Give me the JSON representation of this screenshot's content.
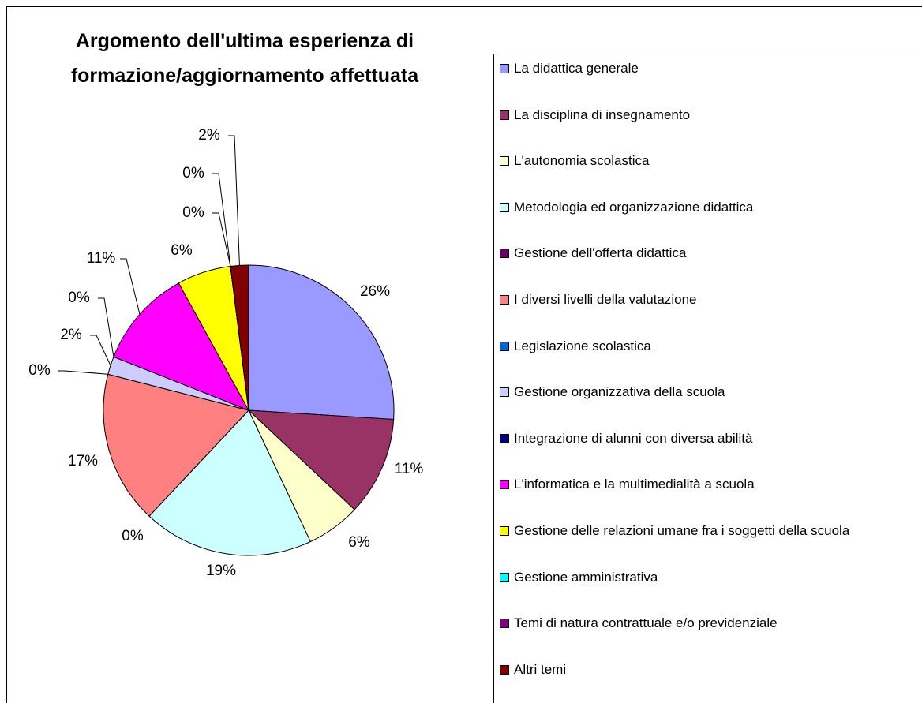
{
  "chart_data": {
    "type": "pie",
    "title": "Argomento dell'ultima esperienza di formazione/aggiornamento affettuata",
    "categories": [
      "La didattica generale",
      "La disciplina di insegnamento",
      "L'autonomia scolastica",
      "Metodologia ed organizzazione didattica",
      "Gestione dell'offerta didattica",
      "I diversi livelli della valutazione",
      "Legislazione scolastica",
      "Gestione organizzativa della scuola",
      "Integrazione di alunni con diversa abilità",
      "L'informatica e la multimedialità a scuola",
      "Gestione delle relazioni umane fra i soggetti della scuola",
      "Gestione amministrativa",
      "Temi di natura contrattuale e/o previdenziale",
      "Altri temi"
    ],
    "values": [
      26,
      11,
      6,
      19,
      0,
      17,
      0,
      2,
      0,
      11,
      6,
      0,
      0,
      2
    ],
    "value_labels": [
      "26%",
      "11%",
      "6%",
      "19%",
      "0%",
      "17%",
      "0%",
      "2%",
      "0%",
      "11%",
      "6%",
      "0%",
      "0%",
      "2%"
    ],
    "colors": [
      "#9999FF",
      "#993366",
      "#FFFFCC",
      "#CCFFFF",
      "#660066",
      "#FF8080",
      "#0066CC",
      "#CCCCFF",
      "#000080",
      "#FF00FF",
      "#FFFF00",
      "#00FFFF",
      "#800080",
      "#800000"
    ],
    "legend": "right"
  }
}
